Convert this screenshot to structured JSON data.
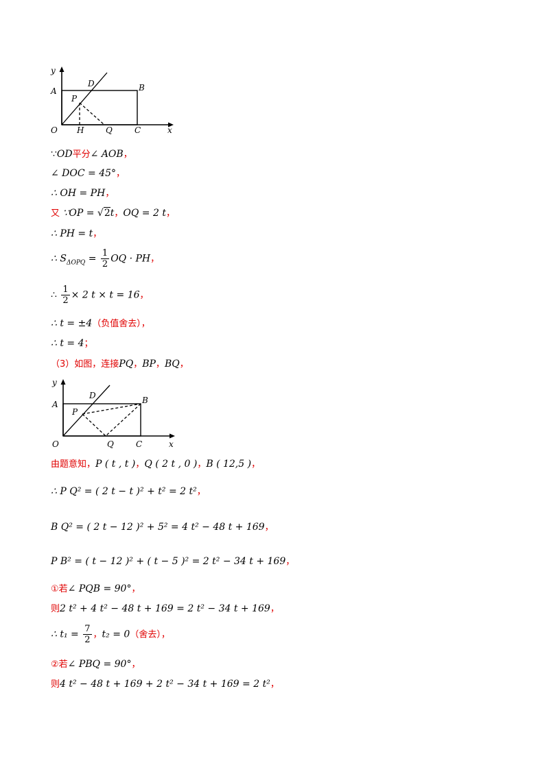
{
  "figure1": {
    "labels": {
      "y": "y",
      "x": "x",
      "A": "A",
      "B": "B",
      "D": "D",
      "P": "P",
      "O": "O",
      "H": "H",
      "Q": "Q",
      "C": "C"
    }
  },
  "figure2": {
    "labels": {
      "y": "y",
      "x": "x",
      "A": "A",
      "B": "B",
      "D": "D",
      "P": "P",
      "O": "O",
      "Q": "Q",
      "C": "C"
    }
  },
  "lines": {
    "l1": {
      "because": "∵",
      "expr": "OD",
      "word": "平分",
      "expr2": "∠ AOB",
      "end": "，"
    },
    "l2": {
      "expr": "∠ DOC = 45°",
      "end": "，"
    },
    "l3": {
      "expr": "∴ OH = PH",
      "end": "，"
    },
    "l4": {
      "word": "又",
      "expr_a": "∵OP = ",
      "sqrt": "2",
      "expr_b": "t",
      "sep": "，",
      "expr_c": "OQ = 2 t",
      "end": "，"
    },
    "l5": {
      "expr": "∴ PH = t",
      "end": "，"
    },
    "l6": {
      "pre": "∴ S",
      "sub": "ΔOPQ",
      "eq": " = ",
      "num": "1",
      "den": "2",
      "post": "OQ · PH",
      "end": "，"
    },
    "l7": {
      "pre": "∴ ",
      "num": "1",
      "den": "2",
      "post": "× 2 t × t = 16",
      "end": "，"
    },
    "l8": {
      "expr": "∴ t = ±4",
      "note": "（负值舍去）",
      "end": "，"
    },
    "l9": {
      "expr": "∴ t = 4",
      "end": "；"
    },
    "l10": {
      "text": "（3）如图，连接",
      "expr": "PQ",
      "sep1": "，",
      "expr2": "BP",
      "sep2": "，",
      "expr3": "BQ",
      "end": "，"
    },
    "l11": {
      "text": "由题意知，",
      "p": "P ( t , t )",
      "sep1": "，",
      "q": "Q ( 2 t , 0 )",
      "sep2": "，",
      "b": "B ( 12,5 )",
      "end": "，"
    },
    "l12": {
      "expr": "∴ P Q² = ( 2 t − t )² + t² = 2 t²",
      "end": "，"
    },
    "l13": {
      "expr": "B Q² = ( 2 t − 12 )² + 5² = 4 t² − 48 t + 169",
      "end": "，"
    },
    "l14": {
      "expr": "P B² = ( t − 12 )² + ( t − 5 )² = 2 t² − 34 t + 169",
      "end": "，"
    },
    "l15": {
      "word": "①若",
      "expr": "∠ PQB = 90°",
      "end": "，"
    },
    "l16": {
      "word": "则",
      "expr": "2 t² + 4 t² − 48 t + 169 = 2 t² − 34 t + 169",
      "end": "，"
    },
    "l17": {
      "pre": "∴ t₁ = ",
      "num": "7",
      "den": "2",
      "sep": "，",
      "post": "t₂ = 0",
      "note": "（舍去）",
      "end": "，"
    },
    "l18": {
      "word": "②若",
      "expr": "∠ PBQ = 90°",
      "end": "，"
    },
    "l19": {
      "word": "则",
      "expr": "4 t² − 48 t + 169 + 2 t² − 34 t + 169 = 2 t²",
      "end": "，"
    }
  }
}
